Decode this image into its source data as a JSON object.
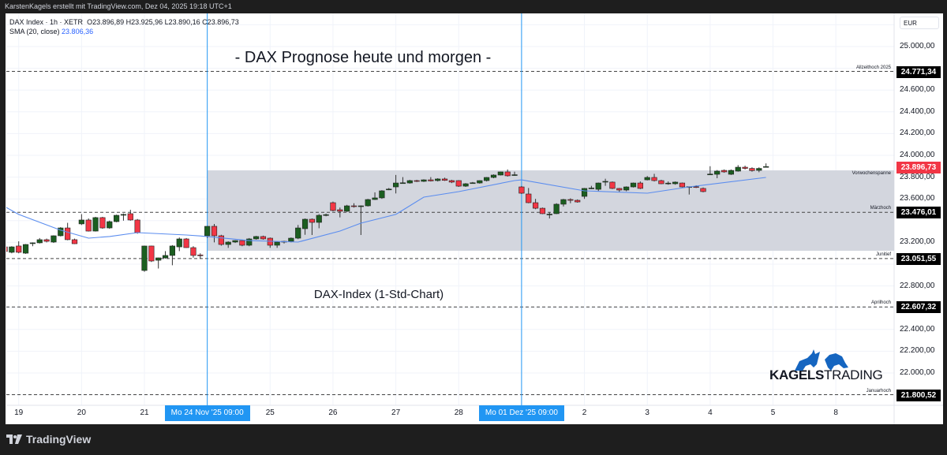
{
  "topbar": {
    "text": "KarstenKagels erstellt mit TradingView.com, Dez 04, 2025 19:18 UTC+1"
  },
  "legend": {
    "symbol": "DAX Index · 1h · XETR",
    "ohlc": "O23.896,89  H23.925,96  L23.890,16  C23.896,73",
    "sma_label": "SMA (20, close)",
    "sma_value": "23.806,36"
  },
  "annotations": {
    "title": "- DAX Prognose heute und morgen -",
    "subtitle": "DAX-Index (1-Std-Chart)"
  },
  "branding": {
    "tradingview": "TradingView",
    "kagels_bold": "KAGELS",
    "kagels_light": "TRADING"
  },
  "colors": {
    "up": "#1b5e20",
    "down": "#f23645",
    "sma": "#5b8def",
    "zone": "#d1d4dc",
    "vline": "#2196f3",
    "price_label": "#f23645"
  },
  "chart_data": {
    "type": "candlestick",
    "currency": "EUR",
    "ylim": [
      21700,
      25200
    ],
    "grid": true,
    "price_ticks": [
      "25.000,00",
      "24.600,00",
      "24.400,00",
      "24.200,00",
      "24.000,00",
      "23.800,00",
      "23.600,00",
      "23.200,00",
      "22.800,00",
      "22.400,00",
      "22.200,00",
      "22.000,00"
    ],
    "price_tick_values": [
      25000,
      24600,
      24400,
      24200,
      24000,
      23800,
      23600,
      23200,
      22800,
      22400,
      22200,
      22000
    ],
    "time_ticks": [
      {
        "label": "19",
        "candle": 2
      },
      {
        "label": "20",
        "candle": 11
      },
      {
        "label": "21",
        "candle": 20
      },
      {
        "label": "25",
        "candle": 38
      },
      {
        "label": "26",
        "candle": 47
      },
      {
        "label": "27",
        "candle": 56
      },
      {
        "label": "28",
        "candle": 65
      },
      {
        "label": "2",
        "candle": 83
      },
      {
        "label": "3",
        "candle": 92
      },
      {
        "label": "4",
        "candle": 101
      },
      {
        "label": "5",
        "candle": 110
      },
      {
        "label": "8",
        "candle": 119
      }
    ],
    "time_markers": [
      {
        "label": "Mo 24 Nov '25   09:00",
        "candle": 29
      },
      {
        "label": "Mo 01 Dez '25   09:00",
        "candle": 74
      }
    ],
    "zone": {
      "label": "Vorwochenspanne",
      "top": 23862,
      "bottom": 23123,
      "from_candle": 29
    },
    "levels": [
      {
        "label": "Allzeithoch 2025",
        "value": 24771.34,
        "text": "24.771,34"
      },
      {
        "label": "Märzhoch",
        "value": 23476.01,
        "text": "23.476,01"
      },
      {
        "label": "Junitief",
        "value": 23051.55,
        "text": "23.051,55"
      },
      {
        "label": "Aprilhoch",
        "value": 22607.32,
        "text": "22.607,32"
      },
      {
        "label": "Januarhoch",
        "value": 21800.52,
        "text": "21.800,52"
      }
    ],
    "last_price": {
      "value": 23896.73,
      "text": "23.896,73"
    },
    "candles_ohlc": [
      [
        23159,
        23170,
        23105,
        23116
      ],
      [
        23109,
        23165,
        23100,
        23159
      ],
      [
        23167,
        23210,
        23100,
        23109
      ],
      [
        23101,
        23185,
        23095,
        23181
      ],
      [
        23190,
        23200,
        23165,
        23196
      ],
      [
        23196,
        23240,
        23190,
        23225
      ],
      [
        23225,
        23235,
        23200,
        23210
      ],
      [
        23203,
        23265,
        23195,
        23261
      ],
      [
        23261,
        23340,
        23255,
        23333
      ],
      [
        23333,
        23380,
        23220,
        23225
      ],
      [
        23225,
        23235,
        23185,
        23188
      ],
      [
        23370,
        23460,
        23360,
        23406
      ],
      [
        23406,
        23420,
        23300,
        23304
      ],
      [
        23304,
        23435,
        23300,
        23428
      ],
      [
        23428,
        23435,
        23325,
        23333
      ],
      [
        23333,
        23400,
        23325,
        23391
      ],
      [
        23391,
        23455,
        23385,
        23449
      ],
      [
        23455,
        23465,
        23400,
        23457
      ],
      [
        23464,
        23500,
        23400,
        23406
      ],
      [
        23406,
        23415,
        23280,
        23290
      ],
      [
        22942,
        23170,
        22930,
        23167
      ],
      [
        23167,
        23170,
        23020,
        23029
      ],
      [
        23036,
        23060,
        22960,
        23058
      ],
      [
        23058,
        23120,
        23050,
        23080
      ],
      [
        23080,
        23175,
        22990,
        23167
      ],
      [
        23159,
        23245,
        23120,
        23232
      ],
      [
        23232,
        23240,
        23150,
        23152
      ],
      [
        23152,
        23165,
        23060,
        23080
      ],
      [
        23085,
        23100,
        23050,
        23080
      ],
      [
        23261,
        23350,
        23240,
        23348
      ],
      [
        23348,
        23370,
        23200,
        23261
      ],
      [
        23261,
        23270,
        23170,
        23181
      ],
      [
        23181,
        23210,
        23150,
        23203
      ],
      [
        23203,
        23220,
        23195,
        23217
      ],
      [
        23217,
        23225,
        23165,
        23174
      ],
      [
        23174,
        23240,
        23165,
        23232
      ],
      [
        23232,
        23260,
        23225,
        23254
      ],
      [
        23254,
        23262,
        23225,
        23232
      ],
      [
        23239,
        23245,
        23150,
        23174
      ],
      [
        23174,
        23210,
        23150,
        23203
      ],
      [
        23205,
        23215,
        23190,
        23210
      ],
      [
        23210,
        23245,
        23200,
        23239
      ],
      [
        23239,
        23360,
        23230,
        23333
      ],
      [
        23326,
        23420,
        23270,
        23413
      ],
      [
        23413,
        23420,
        23268,
        23384
      ],
      [
        23384,
        23460,
        23330,
        23449
      ],
      [
        23449,
        23465,
        23440,
        23455
      ],
      [
        23565,
        23575,
        23485,
        23493
      ],
      [
        23500,
        23520,
        23430,
        23486
      ],
      [
        23486,
        23545,
        23480,
        23536
      ],
      [
        23536,
        23560,
        23520,
        23529
      ],
      [
        23529,
        23540,
        23268,
        23536
      ],
      [
        23536,
        23600,
        23530,
        23594
      ],
      [
        23594,
        23660,
        23590,
        23609
      ],
      [
        23609,
        23680,
        23600,
        23674
      ],
      [
        23685,
        23700,
        23680,
        23690
      ],
      [
        23710,
        23820,
        23650,
        23746
      ],
      [
        23745,
        23800,
        23740,
        23748
      ],
      [
        23746,
        23775,
        23740,
        23768
      ],
      [
        23768,
        23775,
        23755,
        23761
      ],
      [
        23761,
        23780,
        23755,
        23775
      ],
      [
        23775,
        23800,
        23760,
        23765
      ],
      [
        23768,
        23790,
        23760,
        23783
      ],
      [
        23783,
        23795,
        23765,
        23770
      ],
      [
        23768,
        23775,
        23745,
        23754
      ],
      [
        23768,
        23772,
        23710,
        23717
      ],
      [
        23717,
        23745,
        23710,
        23739
      ],
      [
        23745,
        23755,
        23740,
        23748
      ],
      [
        23746,
        23770,
        23740,
        23768
      ],
      [
        23768,
        23800,
        23760,
        23797
      ],
      [
        23797,
        23825,
        23790,
        23819
      ],
      [
        23819,
        23850,
        23815,
        23848
      ],
      [
        23848,
        23870,
        23805,
        23812
      ],
      [
        23819,
        23850,
        23812,
        23822
      ],
      [
        23710,
        23718,
        23645,
        23652
      ],
      [
        23645,
        23700,
        23560,
        23565
      ],
      [
        23565,
        23600,
        23505,
        23514
      ],
      [
        23514,
        23520,
        23460,
        23464
      ],
      [
        23457,
        23475,
        23420,
        23460
      ],
      [
        23464,
        23560,
        23460,
        23551
      ],
      [
        23551,
        23600,
        23530,
        23594
      ],
      [
        23594,
        23605,
        23560,
        23587
      ],
      [
        23587,
        23595,
        23565,
        23572
      ],
      [
        23623,
        23700,
        23600,
        23696
      ],
      [
        23696,
        23720,
        23690,
        23700
      ],
      [
        23688,
        23750,
        23670,
        23746
      ],
      [
        23760,
        23785,
        23720,
        23761
      ],
      [
        23754,
        23760,
        23690,
        23696
      ],
      [
        23696,
        23700,
        23660,
        23681
      ],
      [
        23681,
        23715,
        23670,
        23710
      ],
      [
        23710,
        23750,
        23705,
        23746
      ],
      [
        23746,
        23760,
        23690,
        23696
      ],
      [
        23775,
        23810,
        23770,
        23797
      ],
      [
        23797,
        23830,
        23760,
        23768
      ],
      [
        23768,
        23775,
        23735,
        23739
      ],
      [
        23740,
        23760,
        23730,
        23745
      ],
      [
        23739,
        23760,
        23730,
        23754
      ],
      [
        23746,
        23750,
        23705,
        23710
      ],
      [
        23710,
        23715,
        23640,
        23712
      ],
      [
        23712,
        23725,
        23700,
        23710
      ],
      [
        23696,
        23705,
        23660,
        23667
      ],
      [
        23826,
        23900,
        23820,
        23828
      ],
      [
        23826,
        23865,
        23790,
        23855
      ],
      [
        23862,
        23870,
        23840,
        23848
      ],
      [
        23826,
        23870,
        23820,
        23862
      ],
      [
        23855,
        23910,
        23850,
        23891
      ],
      [
        23891,
        23905,
        23870,
        23880
      ],
      [
        23880,
        23890,
        23850,
        23860
      ],
      [
        23862,
        23890,
        23845,
        23880
      ],
      [
        23890,
        23926,
        23890,
        23897
      ]
    ],
    "sma_points": [
      [
        0,
        23529
      ],
      [
        2,
        23457
      ],
      [
        8,
        23312
      ],
      [
        12,
        23239
      ],
      [
        15,
        23254
      ],
      [
        19,
        23290
      ],
      [
        26,
        23268
      ],
      [
        29,
        23254
      ],
      [
        35,
        23217
      ],
      [
        42,
        23203
      ],
      [
        48,
        23304
      ],
      [
        51,
        23377
      ],
      [
        56,
        23457
      ],
      [
        60,
        23616
      ],
      [
        65,
        23667
      ],
      [
        73,
        23768
      ],
      [
        74,
        23775
      ],
      [
        83,
        23674
      ],
      [
        92,
        23652
      ],
      [
        98,
        23710
      ],
      [
        109,
        23797
      ]
    ]
  }
}
